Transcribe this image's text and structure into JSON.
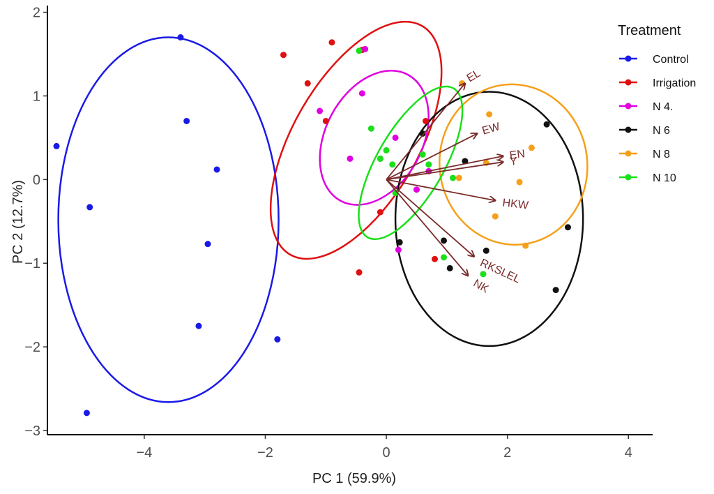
{
  "chart_data": {
    "type": "scatter",
    "xlabel": "PC 1 (59.9%)",
    "ylabel": "PC 2 (12.7%)",
    "xlim": [
      -5.6,
      4.4
    ],
    "ylim": [
      -3.05,
      2.08
    ],
    "x_ticks": [
      -4,
      -2,
      0,
      2,
      4
    ],
    "y_ticks": [
      -3,
      -2,
      -1,
      0,
      1,
      2
    ],
    "x_tick_labels": [
      "−4",
      "−2",
      "0",
      "2",
      "4"
    ],
    "y_tick_labels": [
      "−3",
      "−2",
      "−1",
      "0",
      "1",
      "2"
    ],
    "grid": false,
    "legend": {
      "title": "Treatment",
      "position": "right"
    },
    "series": [
      {
        "name": "Control",
        "color": "#1a1ae6",
        "points": [
          [
            -5.45,
            0.4
          ],
          [
            -3.4,
            1.7
          ],
          [
            -3.3,
            0.7
          ],
          [
            -2.8,
            0.12
          ],
          [
            -4.9,
            -0.33
          ],
          [
            -2.95,
            -0.77
          ],
          [
            -3.1,
            -1.75
          ],
          [
            -1.8,
            -1.91
          ],
          [
            -4.95,
            -2.79
          ]
        ],
        "ellipse": {
          "cx": -3.6,
          "cy": -0.48,
          "rx": 1.82,
          "ry": 2.18,
          "angle_deg": 0
        }
      },
      {
        "name": "Irrigation",
        "color": "#e01010",
        "points": [
          [
            -1.7,
            1.49
          ],
          [
            -0.9,
            1.64
          ],
          [
            -1.3,
            1.15
          ],
          [
            -1.0,
            0.7
          ],
          [
            -0.4,
            1.55
          ],
          [
            0.65,
            0.7
          ],
          [
            -0.1,
            -0.39
          ],
          [
            0.8,
            -0.95
          ],
          [
            -0.45,
            -1.11
          ]
        ],
        "ellipse": {
          "cx": -0.5,
          "cy": 0.47,
          "rx": 2.18,
          "ry": 0.75,
          "angle_deg": -60
        }
      },
      {
        "name": "N 4.",
        "color": "#e000e0",
        "points": [
          [
            -0.35,
            1.56
          ],
          [
            -0.4,
            1.03
          ],
          [
            -1.1,
            0.82
          ],
          [
            -0.6,
            0.25
          ],
          [
            -0.1,
            0.25
          ],
          [
            0.15,
            0.5
          ],
          [
            0.5,
            -0.12
          ],
          [
            0.2,
            -0.84
          ],
          [
            0.7,
            0.1
          ]
        ],
        "ellipse": {
          "cx": -0.2,
          "cy": 0.5,
          "rx": 1.18,
          "ry": 0.58,
          "angle_deg": -62
        }
      },
      {
        "name": "N 6",
        "color": "#111111",
        "points": [
          [
            0.6,
            0.55
          ],
          [
            1.3,
            0.22
          ],
          [
            2.65,
            0.66
          ],
          [
            0.95,
            -0.73
          ],
          [
            1.65,
            -0.85
          ],
          [
            1.05,
            -1.06
          ],
          [
            2.8,
            -1.32
          ],
          [
            3.0,
            -0.57
          ],
          [
            0.22,
            -0.75
          ]
        ],
        "ellipse": {
          "cx": 1.7,
          "cy": -0.47,
          "rx": 1.55,
          "ry": 1.52,
          "angle_deg": 0
        }
      },
      {
        "name": "N 8",
        "color": "#f5a01a",
        "points": [
          [
            1.25,
            1.15
          ],
          [
            1.7,
            0.78
          ],
          [
            2.4,
            0.38
          ],
          [
            1.2,
            0.02
          ],
          [
            2.2,
            -0.03
          ],
          [
            1.8,
            -0.44
          ],
          [
            2.3,
            -0.79
          ],
          [
            1.65,
            0.2
          ]
        ],
        "ellipse": {
          "cx": 2.1,
          "cy": 0.18,
          "rx": 1.22,
          "ry": 0.96,
          "angle_deg": -8
        }
      },
      {
        "name": "N 10",
        "color": "#19e019",
        "points": [
          [
            -0.45,
            1.54
          ],
          [
            -0.25,
            0.61
          ],
          [
            0.0,
            0.35
          ],
          [
            0.1,
            0.18
          ],
          [
            -0.1,
            0.25
          ],
          [
            0.15,
            -0.16
          ],
          [
            0.7,
            0.18
          ],
          [
            0.6,
            0.3
          ],
          [
            1.1,
            0.02
          ],
          [
            0.95,
            -0.93
          ],
          [
            1.6,
            -1.13
          ]
        ],
        "ellipse": {
          "cx": 0.4,
          "cy": 0.2,
          "rx": 1.42,
          "ry": 0.4,
          "angle_deg": -60
        }
      }
    ],
    "loadings": [
      {
        "name": "EL",
        "x": 1.3,
        "y": 1.15
      },
      {
        "name": "EW",
        "x": 1.5,
        "y": 0.55
      },
      {
        "name": "EN",
        "x": 1.93,
        "y": 0.28
      },
      {
        "name": "Y",
        "x": 1.93,
        "y": 0.21
      },
      {
        "name": "HKW",
        "x": 1.8,
        "y": -0.25
      },
      {
        "name": "RKSLEL",
        "x": 1.45,
        "y": -0.92
      },
      {
        "name": "NK",
        "x": 1.35,
        "y": -1.15
      }
    ],
    "loading_color": "#7a2a2a"
  }
}
